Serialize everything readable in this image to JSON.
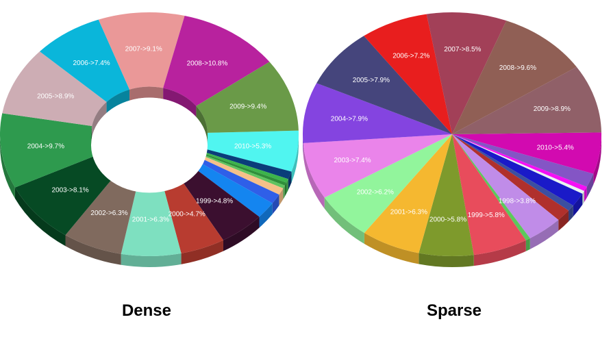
{
  "chart_data": [
    {
      "type": "pie",
      "variant": "donut-3d",
      "title": "Dense",
      "slices": [
        {
          "label": "2010->5.3%",
          "value": 5.3,
          "color": "#50f5f0"
        },
        {
          "label": "",
          "value": 1.0,
          "color": "#0a3d7a"
        },
        {
          "label": "",
          "value": 0.5,
          "color": "#3cb44b"
        },
        {
          "label": "",
          "value": 0.4,
          "color": "#2f8f3a"
        },
        {
          "label": "",
          "value": 0.4,
          "color": "#5fc35f"
        },
        {
          "label": "",
          "value": 0.9,
          "color": "#f5c089"
        },
        {
          "label": "",
          "value": 1.3,
          "color": "#2f5fe8"
        },
        {
          "label": "",
          "value": 2.2,
          "color": "#1485f0"
        },
        {
          "label": "1999->4.8%",
          "value": 4.8,
          "color": "#3b0f2f"
        },
        {
          "label": "2000->4.7%",
          "value": 4.7,
          "color": "#b83c30"
        },
        {
          "label": "2001->6.3%",
          "value": 6.3,
          "color": "#7ee0c0"
        },
        {
          "label": "2002->6.3%",
          "value": 6.3,
          "color": "#806a5e"
        },
        {
          "label": "2003->8.1%",
          "value": 8.1,
          "color": "#064a24"
        },
        {
          "label": "2004->9.7%",
          "value": 9.7,
          "color": "#2e9a4e"
        },
        {
          "label": "2005->8.9%",
          "value": 8.9,
          "color": "#cdadb4"
        },
        {
          "label": "2006->7.4%",
          "value": 7.4,
          "color": "#0ab6da"
        },
        {
          "label": "2007->9.1%",
          "value": 9.1,
          "color": "#ea9898"
        },
        {
          "label": "2008->10.8%",
          "value": 10.8,
          "color": "#b8229e"
        },
        {
          "label": "2009->9.4%",
          "value": 9.4,
          "color": "#6a9a48"
        }
      ]
    },
    {
      "type": "pie",
      "variant": "3d",
      "title": "Sparse",
      "slices": [
        {
          "label": "2010->5.4%",
          "value": 5.4,
          "color": "#d20ab0"
        },
        {
          "label": "",
          "value": 1.8,
          "color": "#8455c5"
        },
        {
          "label": "",
          "value": 0.6,
          "color": "#f510f5"
        },
        {
          "label": "",
          "value": 0.4,
          "color": "#e8f5f0"
        },
        {
          "label": "",
          "value": 1.8,
          "color": "#1a1ac8"
        },
        {
          "label": "",
          "value": 0.8,
          "color": "#3c4fa0"
        },
        {
          "label": "",
          "value": 1.6,
          "color": "#b0302c"
        },
        {
          "label": "1998->3.8%",
          "value": 3.8,
          "color": "#c08ce8"
        },
        {
          "label": "",
          "value": 0.5,
          "color": "#5cc85c"
        },
        {
          "label": "1999->5.8%",
          "value": 5.8,
          "color": "#e84c5c"
        },
        {
          "label": "2000->5.8%",
          "value": 5.8,
          "color": "#7e9a2c"
        },
        {
          "label": "2001->6.3%",
          "value": 6.3,
          "color": "#f5b830"
        },
        {
          "label": "2002->6.2%",
          "value": 6.2,
          "color": "#92f59c"
        },
        {
          "label": "2003->7.4%",
          "value": 7.4,
          "color": "#ea84ea"
        },
        {
          "label": "2004->7.9%",
          "value": 7.9,
          "color": "#8444e0"
        },
        {
          "label": "2005->7.9%",
          "value": 7.9,
          "color": "#45457c"
        },
        {
          "label": "2006->7.2%",
          "value": 7.2,
          "color": "#e81e1e"
        },
        {
          "label": "2007->8.5%",
          "value": 8.5,
          "color": "#a24058"
        },
        {
          "label": "2008->9.6%",
          "value": 9.6,
          "color": "#905f55"
        },
        {
          "label": "2009->8.9%",
          "value": 8.9,
          "color": "#906068"
        }
      ]
    }
  ]
}
